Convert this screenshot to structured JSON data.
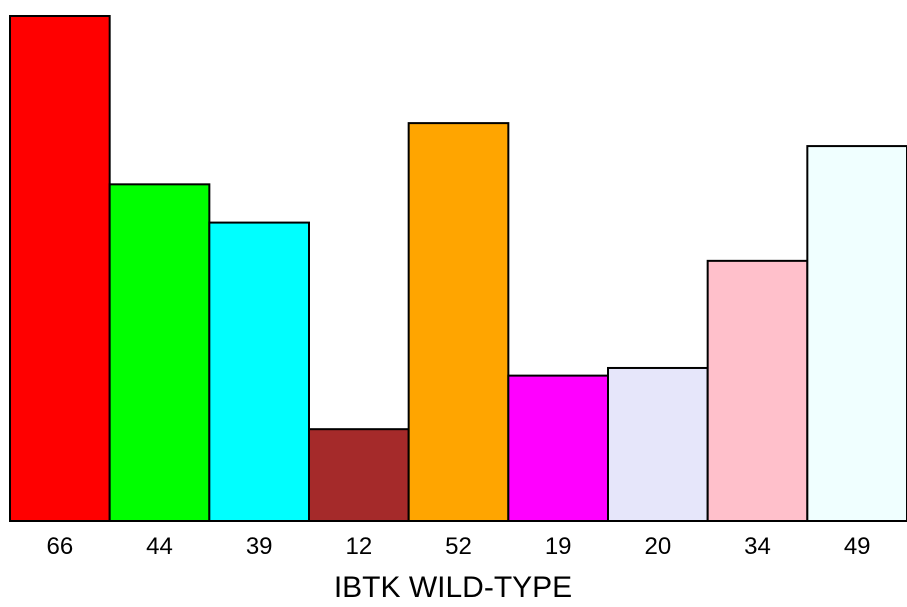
{
  "chart_data": {
    "type": "bar",
    "categories": [
      "66",
      "44",
      "39",
      "12",
      "52",
      "19",
      "20",
      "34",
      "49"
    ],
    "values": [
      66,
      44,
      39,
      12,
      52,
      19,
      20,
      34,
      49
    ],
    "colors": [
      "#ff0000",
      "#00ff00",
      "#00ffff",
      "#a52a2a",
      "#ffa500",
      "#ff00ff",
      "#e6e6fa",
      "#ffc0cb",
      "#f0ffff"
    ],
    "xlabel": "IBTK WILD-TYPE",
    "ylim": [
      0,
      66
    ],
    "grid": false,
    "legend": "none"
  }
}
